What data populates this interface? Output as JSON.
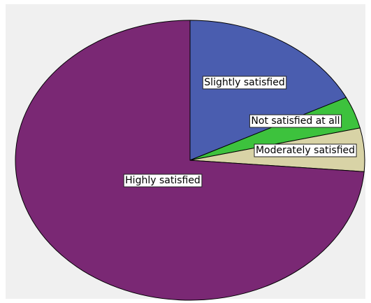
{
  "chart_data": {
    "type": "pie",
    "title": "",
    "legend": "none",
    "slices": [
      {
        "label": "Slightly satisfied",
        "value": 17.6,
        "color": "#4a5daf"
      },
      {
        "label": "Not satisfied at all",
        "value": 3.7,
        "color": "#3dc23d"
      },
      {
        "label": "Moderately satisfied",
        "value": 5.0,
        "color": "#d8d3a6"
      },
      {
        "label": "Highly satisfied",
        "value": 73.7,
        "color": "#7a2874"
      }
    ],
    "start_angle": "12 o'clock",
    "direction": "clockwise",
    "background": "#f0f0f0",
    "outline_color": "#000000"
  }
}
